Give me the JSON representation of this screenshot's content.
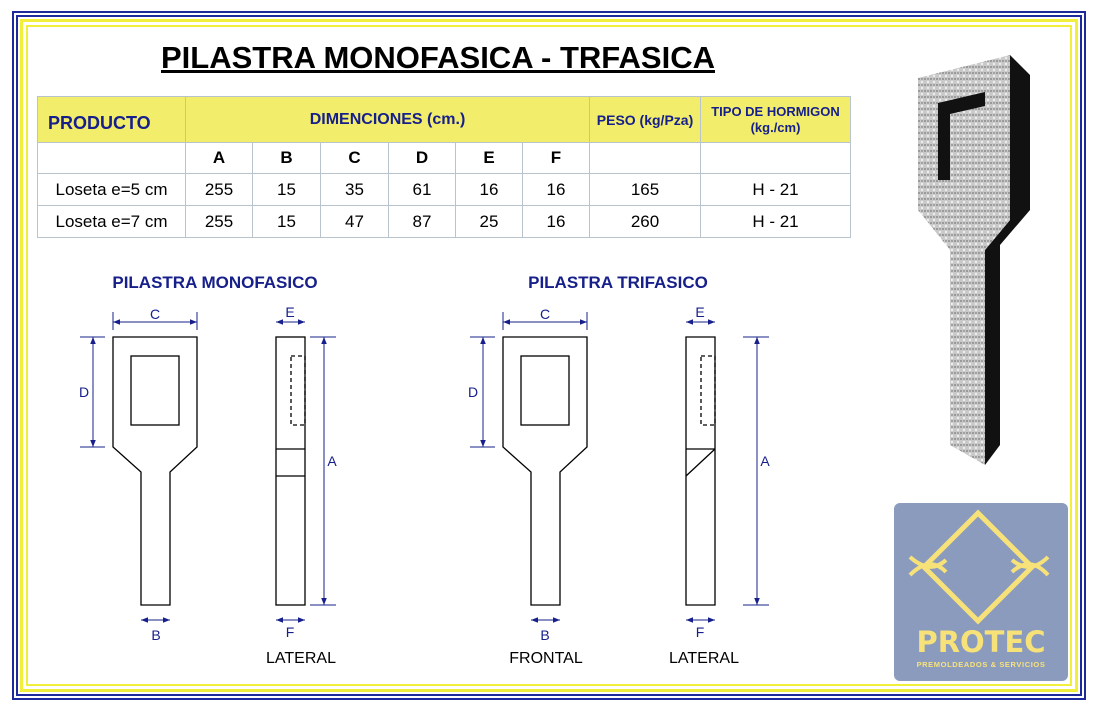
{
  "title": "PILASTRA MONOFASICA - TRFASICA",
  "table": {
    "headers": {
      "product": "PRODUCTO",
      "dimensions": "DIMENCIONES (cm.)",
      "weight": "PESO (kg/Pza)",
      "concrete_line1": "TIPO DE HORMIGON",
      "concrete_line2": "(kg./cm)"
    },
    "dim_columns": [
      "A",
      "B",
      "C",
      "D",
      "E",
      "F"
    ],
    "rows": [
      {
        "product": "Loseta e=5 cm",
        "dims": [
          "255",
          "15",
          "35",
          "61",
          "16",
          "16"
        ],
        "weight": "165",
        "concrete": "H - 21"
      },
      {
        "product": "Loseta e=7 cm",
        "dims": [
          "255",
          "15",
          "47",
          "87",
          "25",
          "16"
        ],
        "weight": "260",
        "concrete": "H - 21"
      }
    ]
  },
  "drawings": {
    "mono_title": "PILASTRA  MONOFASICO",
    "tri_title": "PILASTRA  TRIFASICO",
    "dims": {
      "A": "A",
      "B": "B",
      "C": "C",
      "D": "D",
      "E": "E",
      "F": "F"
    },
    "lateral": "LATERAL",
    "frontal": "FRONTAL"
  },
  "logo": {
    "name": "PROTEC",
    "tagline": "PREMOLDEADOS & SERVICIOS",
    "bg": "#8b9bbd",
    "fg": "#f7e27a"
  },
  "colors": {
    "border_blue": "#1c2a9c",
    "border_yellow": "#f2ee3c",
    "header_yellow": "#f2ee6c",
    "text_blue": "#17208a"
  }
}
